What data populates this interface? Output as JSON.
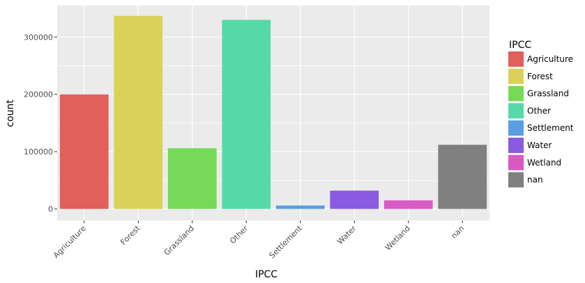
{
  "chart_data": {
    "type": "bar",
    "title": "",
    "xlabel": "IPCC",
    "ylabel": "count",
    "categories": [
      "Agriculture",
      "Forest",
      "Grassland",
      "Other",
      "Settlement",
      "Water",
      "Wetland",
      "nan"
    ],
    "values": [
      200000,
      337000,
      106000,
      330000,
      6000,
      32000,
      15000,
      112000
    ],
    "colors": [
      "#e0605a",
      "#dad15a",
      "#76d957",
      "#56d9a8",
      "#5a9ee0",
      "#8a5ae0",
      "#da5ac4",
      "#808080"
    ],
    "ylim": [
      -20000,
      355000
    ],
    "yticks": [
      0,
      100000,
      200000,
      300000
    ],
    "ytick_labels": [
      "0",
      "100000",
      "200000",
      "300000"
    ],
    "grid": true,
    "legend": {
      "title": "IPCC",
      "placement": "right",
      "entries": [
        "Agriculture",
        "Forest",
        "Grassland",
        "Other",
        "Settlement",
        "Water",
        "Wetland",
        "nan"
      ]
    }
  }
}
